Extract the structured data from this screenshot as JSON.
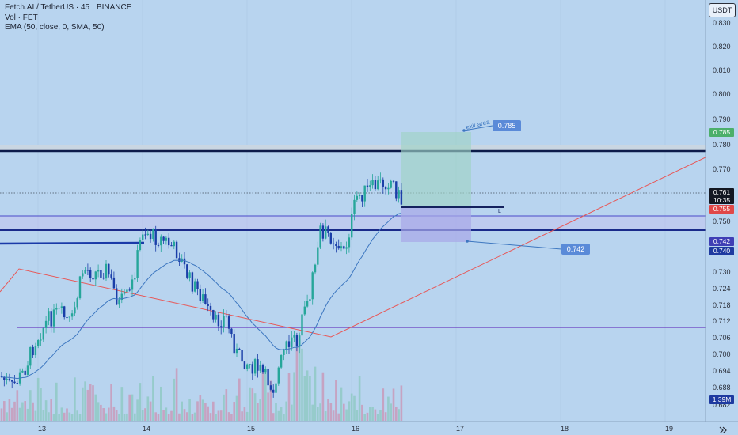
{
  "header": {
    "symbol_line": "Fetch.AI / TetherUS · 45 · BINANCE",
    "volume_line": "Vol · FET",
    "indicator_line": "EMA (50, close, 0, SMA, 50)"
  },
  "currency_label": "USDT",
  "price_axis": {
    "ticks": [
      "0.830",
      "0.820",
      "0.810",
      "0.800",
      "0.790",
      "0.780",
      "0.770",
      "0.750",
      "0.730",
      "0.724",
      "0.718",
      "0.712",
      "0.706",
      "0.700",
      "0.694",
      "0.688",
      "0.682"
    ]
  },
  "price_badges": {
    "target": {
      "text": "0.785",
      "color": "#4caf6a"
    },
    "last": {
      "text": "0.761",
      "sub": "10:35",
      "color": "#131722"
    },
    "entry": {
      "text": "0.755",
      "color": "#e04848"
    },
    "stop_a": {
      "text": "0.742",
      "color": "#3f3fb5"
    },
    "stop_b": {
      "text": "0.740",
      "color": "#1e3aa0"
    },
    "volume": {
      "text": "1.39M",
      "color": "#1e3aa0"
    }
  },
  "time_axis": {
    "labels": [
      "13",
      "14",
      "15",
      "16",
      "17",
      "18",
      "19"
    ]
  },
  "annotations": {
    "exit_text": "exit area",
    "exit_value": "0.785",
    "stop_value": "0.742",
    "line_marker": "L"
  },
  "colors": {
    "background": "#b8d4ef",
    "bull": "#26a69a",
    "bear": "#1a3ea8",
    "ema": "#3d77c0",
    "trendline": "#e85757",
    "support": "#6a3dc0",
    "profit_zone": "#9fd2c4",
    "loss_zone": "#a8a8e8"
  }
}
